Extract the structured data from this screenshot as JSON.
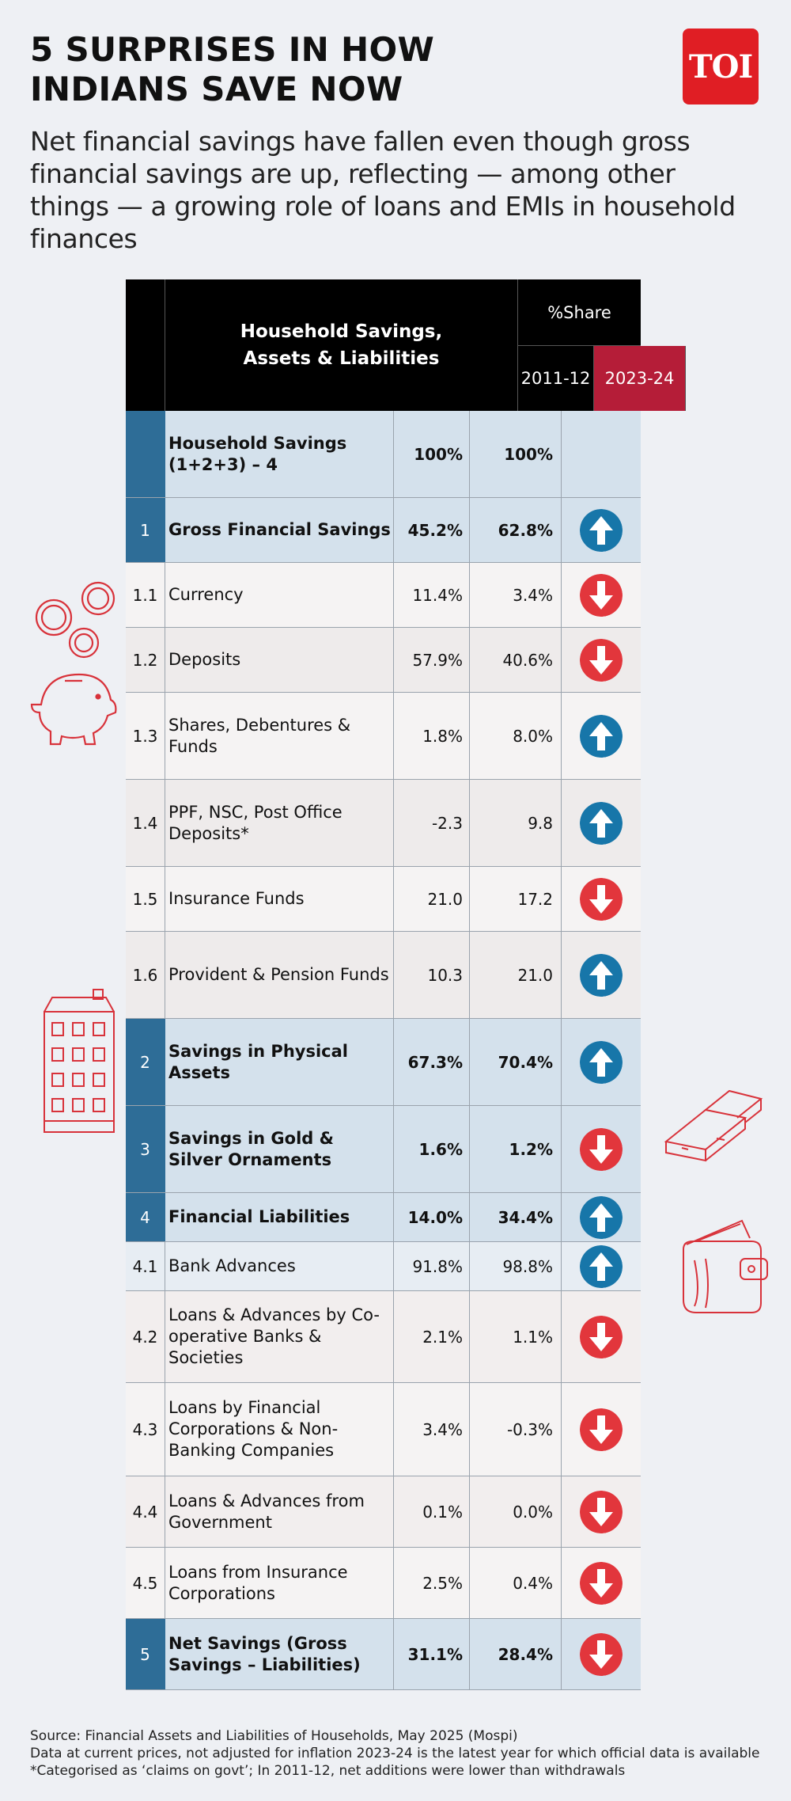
{
  "header": {
    "title_line1": "5 SURPRISES IN HOW",
    "title_line2": "INDIANS SAVE NOW",
    "logo": "TOI",
    "subtitle": "Net financial savings have fallen even though gross financial savings are up, reflecting — among other things — a growing role of loans and EMIs in household finances"
  },
  "colors": {
    "accent_blue": "#2e6d97",
    "up_arrow": "#1776a9",
    "down_arrow": "#e2363c",
    "year_highlight": "#b51d38"
  },
  "chart_data": {
    "type": "table",
    "title": "Household Savings, Assets & Liabilities",
    "column_group": "%Share",
    "columns": [
      "2011-12",
      "2023-24"
    ],
    "rows": [
      {
        "num": "",
        "label": "Household Savings (1+2+3) – 4",
        "v1": "100%",
        "v2": "100%",
        "trend": "",
        "style": "hl"
      },
      {
        "num": "1",
        "label": "Gross Financial Savings",
        "v1": "45.2%",
        "v2": "62.8%",
        "trend": "up",
        "style": "hl"
      },
      {
        "num": "1.1",
        "label": "Currency",
        "v1": "11.4%",
        "v2": "3.4%",
        "trend": "down",
        "style": "a"
      },
      {
        "num": "1.2",
        "label": "Deposits",
        "v1": "57.9%",
        "v2": "40.6%",
        "trend": "down",
        "style": "b"
      },
      {
        "num": "1.3",
        "label": "Shares, Debentures & Funds",
        "v1": "1.8%",
        "v2": "8.0%",
        "trend": "up",
        "style": "a"
      },
      {
        "num": "1.4",
        "label": "PPF, NSC, Post Office Deposits*",
        "v1": "-2.3",
        "v2": "9.8",
        "trend": "up",
        "style": "b"
      },
      {
        "num": "1.5",
        "label": "Insurance Funds",
        "v1": "21.0",
        "v2": "17.2",
        "trend": "down",
        "style": "a"
      },
      {
        "num": "1.6",
        "label": "Provident & Pension Funds",
        "v1": "10.3",
        "v2": "21.0",
        "trend": "up",
        "style": "b"
      },
      {
        "num": "2",
        "label": "Savings in Physical Assets",
        "v1": "67.3%",
        "v2": "70.4%",
        "trend": "up",
        "style": "hl"
      },
      {
        "num": "3",
        "label": "Savings in Gold & Silver Ornaments",
        "v1": "1.6%",
        "v2": "1.2%",
        "trend": "down",
        "style": "hl"
      },
      {
        "num": "4",
        "label": "Financial Liabilities",
        "v1": "14.0%",
        "v2": "34.4%",
        "trend": "up",
        "style": "hl"
      },
      {
        "num": "4.1",
        "label": "Bank Advances",
        "v1": "91.8%",
        "v2": "98.8%",
        "trend": "up",
        "style": "c"
      },
      {
        "num": "4.2",
        "label": "Loans & Advances by Co-operative Banks & Societies",
        "v1": "2.1%",
        "v2": "1.1%",
        "trend": "down",
        "style": "d"
      },
      {
        "num": "4.3",
        "label": "Loans by Financial Corporations & Non-Banking Companies",
        "v1": "3.4%",
        "v2": "-0.3%",
        "trend": "down",
        "style": "a"
      },
      {
        "num": "4.4",
        "label": "Loans & Advances from Government",
        "v1": "0.1%",
        "v2": "0.0%",
        "trend": "down",
        "style": "d"
      },
      {
        "num": "4.5",
        "label": "Loans from Insurance Corporations",
        "v1": "2.5%",
        "v2": "0.4%",
        "trend": "down",
        "style": "a"
      },
      {
        "num": "5",
        "label": "Net Savings (Gross Savings – Liabilities)",
        "v1": "31.1%",
        "v2": "28.4%",
        "trend": "down",
        "style": "hl"
      }
    ]
  },
  "footer": {
    "source": "Source: Financial Assets and Liabilities of Households, May 2025 (Mospi)",
    "note1": "Data at current prices, not adjusted for inflation 2023-24 is the latest year for which official data is available",
    "note2": "*Categorised as ‘claims on govt’; In 2011-12, net additions were lower than withdrawals"
  }
}
